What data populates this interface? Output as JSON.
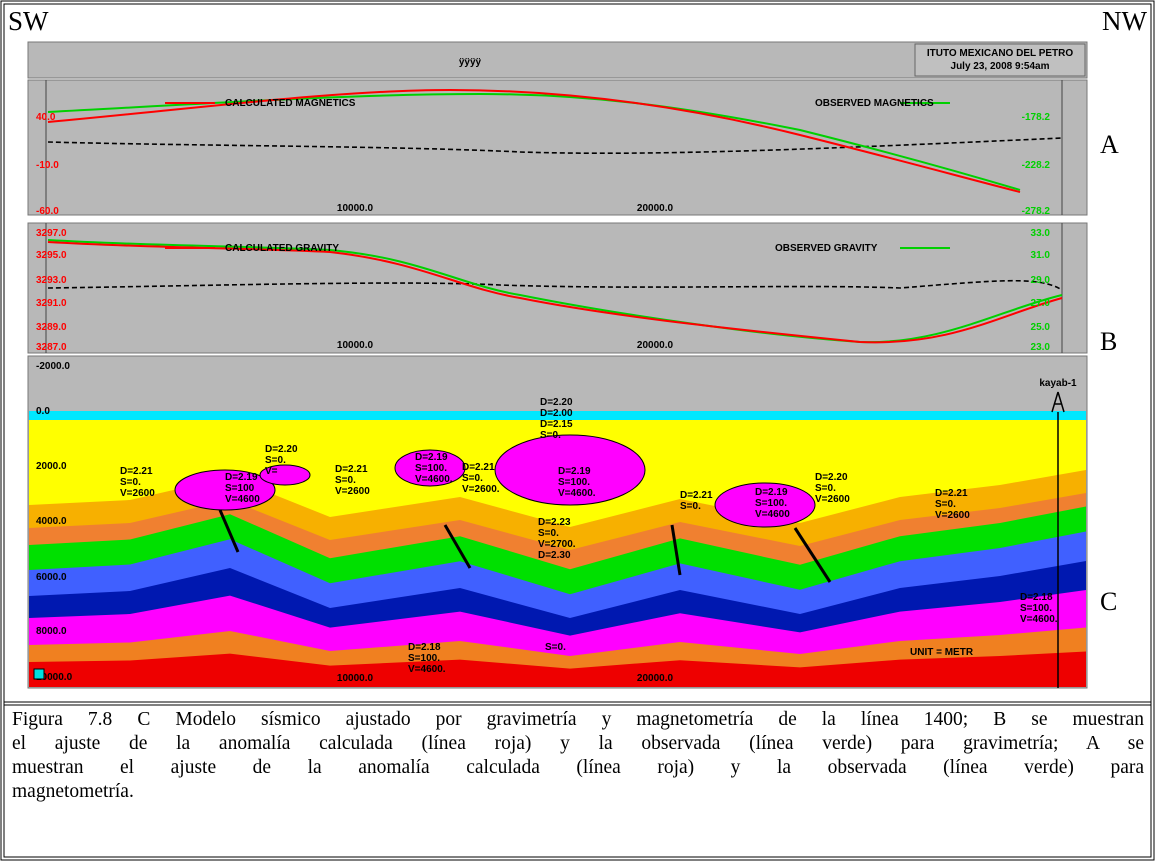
{
  "header": {
    "left": "SW",
    "right": "NW"
  },
  "screen": {
    "title": "ÿÿÿÿ",
    "institute": "ITUTO MEXICANO DEL PETRO",
    "date": "July 23, 2008 9:54am"
  },
  "panel_a": {
    "label": "A",
    "calculated": "CALCULATED MAGNETICS",
    "observed": "OBSERVED MAGNETICS",
    "left_axis": [
      "40.0",
      "-10.0",
      "-60.0"
    ],
    "right_axis": [
      "-178.2",
      "-228.2",
      "-278.2"
    ],
    "x_axis": [
      "10000.0",
      "20000.0"
    ]
  },
  "panel_b": {
    "label": "B",
    "calculated": "CALCULATED GRAVITY",
    "observed": "OBSERVED GRAVITY",
    "left_axis": [
      "3297.0",
      "3295.0",
      "3293.0",
      "3291.0",
      "3289.0",
      "3287.0"
    ],
    "right_axis": [
      "33.0",
      "31.0",
      "29.0",
      "27.0",
      "25.0",
      "23.0"
    ],
    "x_axis": [
      "10000.0",
      "20000.0"
    ]
  },
  "panel_c": {
    "label": "C",
    "well": "kayab-1",
    "unit": "UNIT = METR",
    "left_axis": [
      "-2000.0",
      "0.0",
      "2000.0",
      "4000.0",
      "6000.0",
      "8000.0",
      "10000.0"
    ],
    "x_axis": [
      "10000.0",
      "20000.0"
    ],
    "bodies": [
      [
        "D=2.21",
        "S=0.",
        "V=2600"
      ],
      [
        "D=2.19",
        "S=100",
        "V=4600"
      ],
      [
        "D=2.20",
        "S=0.",
        "V="
      ],
      [
        "D=2.21",
        "S=0.",
        "V=2600"
      ],
      [
        "D=2.19",
        "S=100.",
        "V=4600."
      ],
      [
        "D=2.21",
        "S=0.",
        "V=2600."
      ],
      [
        "D=2.20",
        "D=2.00",
        "D=2.15",
        "S=0."
      ],
      [
        "D=2.19",
        "S=100.",
        "V=4600."
      ],
      [
        "D=2.21",
        "S=0."
      ],
      [
        "D=2.19",
        "S=100.",
        "V=4600"
      ],
      [
        "D=2.20",
        "S=0.",
        "V=2600"
      ],
      [
        "D=2.21",
        "S=0.",
        "V=2600"
      ],
      [
        "D=2.23",
        "S=0.",
        "V=2700.",
        "D=2.30"
      ],
      [
        "D=2.18",
        "S=100.",
        "V=4600."
      ],
      [
        "D=2.18",
        "S=100.",
        "V=4600."
      ],
      [
        "S=0."
      ]
    ]
  },
  "caption": [
    "Figura 7.8 C Modelo sísmico ajustado por gravimetría y magnetometría de la línea 1400; B se muestran",
    "el ajuste de la anomalía calculada  (línea roja) y la observada (línea verde)  para gravimetría; A se",
    "muestran el ajuste de la anomalía calculada   (línea roja) y la observada (línea verde)   para",
    "magnetometría."
  ]
}
